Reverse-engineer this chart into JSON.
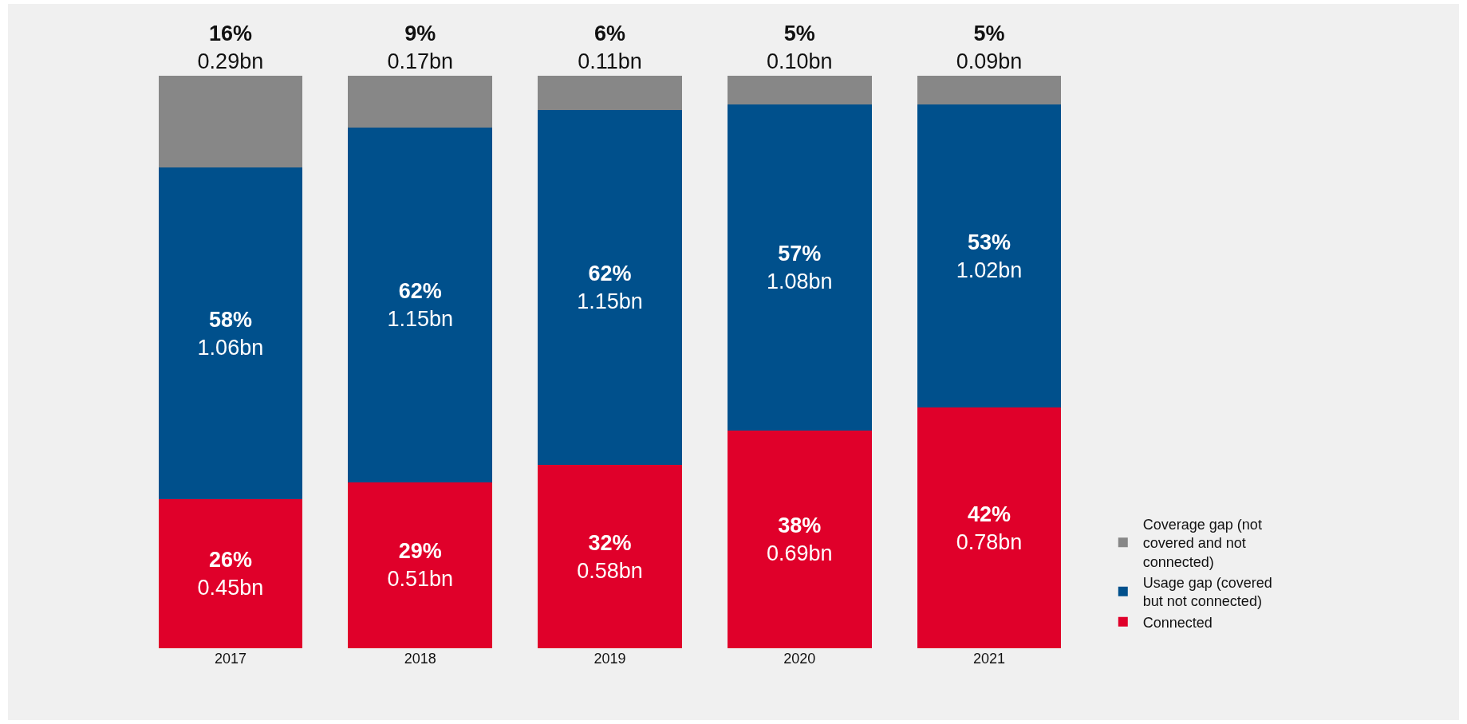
{
  "chart_data": {
    "type": "bar",
    "stacked": true,
    "categories": [
      "2017",
      "2018",
      "2019",
      "2020",
      "2021"
    ],
    "series": [
      {
        "name": "Connected",
        "color": "#e0002a",
        "values": [
          26,
          29,
          32,
          38,
          42
        ],
        "value_labels": [
          "26%\n0.45bn",
          "29%\n0.51bn",
          "32%\n0.58bn",
          "38%\n0.69bn",
          "42%\n0.78bn"
        ]
      },
      {
        "name": "Usage gap (covered but not connected)",
        "color": "#00508c",
        "values": [
          58,
          62,
          62,
          57,
          53
        ],
        "value_labels": [
          "58%\n1.06bn",
          "62%\n1.15bn",
          "62%\n1.15bn",
          "57%\n1.08bn",
          "53%\n1.02bn"
        ]
      },
      {
        "name": "Coverage gap (not covered and not connected)",
        "color": "#878787",
        "values": [
          16,
          9,
          6,
          5,
          5
        ],
        "value_labels": [
          "16%\n0.29bn",
          "9%\n0.17bn",
          "6%\n0.11bn",
          "5%\n0.10bn",
          "5%\n0.09bn"
        ]
      }
    ],
    "ylim": [
      0,
      100
    ],
    "tick_labels": "x",
    "grid": false,
    "legend": "bottom right"
  }
}
